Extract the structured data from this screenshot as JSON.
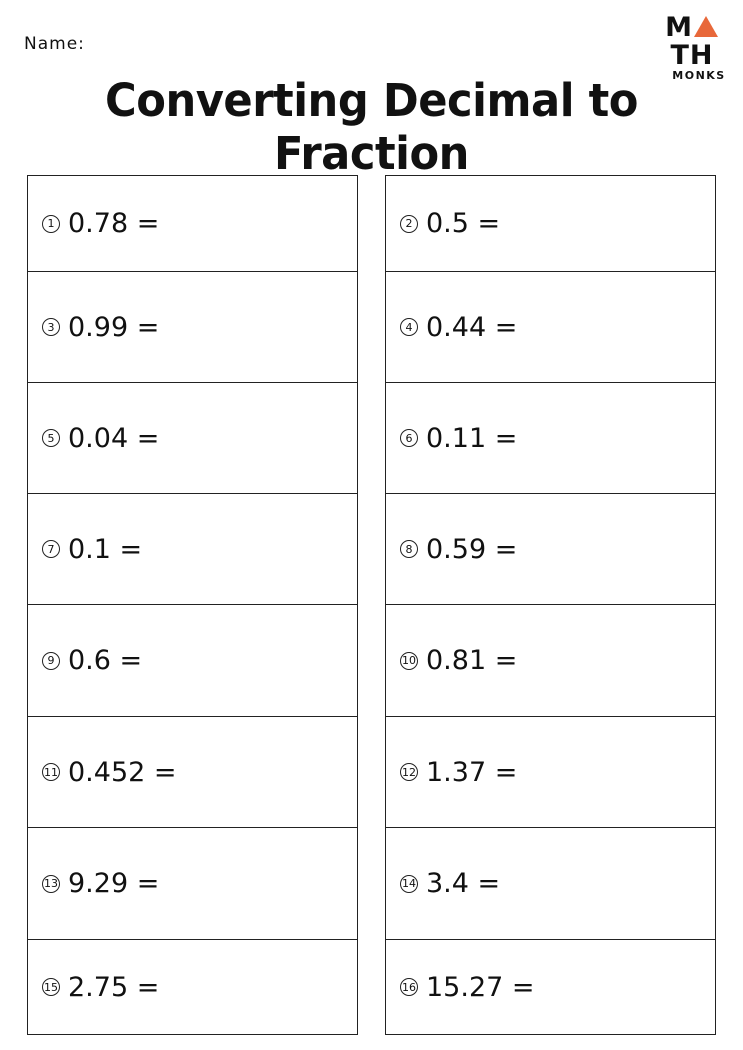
{
  "header": {
    "name_label": "Name:",
    "title": "Converting Decimal to Fraction"
  },
  "logo": {
    "line1_left": "M",
    "line1_right": "TH",
    "line2": "MONKS",
    "accent": "#e8683a"
  },
  "left": [
    {
      "n": "1",
      "q": "0.78 ="
    },
    {
      "n": "3",
      "q": "0.99 ="
    },
    {
      "n": "5",
      "q": "0.04 ="
    },
    {
      "n": "7",
      "q": "0.1 ="
    },
    {
      "n": "9",
      "q": "0.6 ="
    },
    {
      "n": "11",
      "q": "0.452 ="
    },
    {
      "n": "13",
      "q": "9.29 ="
    },
    {
      "n": "15",
      "q": "2.75 ="
    }
  ],
  "right": [
    {
      "n": "2",
      "q": "0.5 ="
    },
    {
      "n": "4",
      "q": "0.44 ="
    },
    {
      "n": "6",
      "q": "0.11 ="
    },
    {
      "n": "8",
      "q": "0.59 ="
    },
    {
      "n": "10",
      "q": "0.81 ="
    },
    {
      "n": "12",
      "q": "1.37 ="
    },
    {
      "n": "14",
      "q": "3.4 ="
    },
    {
      "n": "16",
      "q": "15.27 ="
    }
  ]
}
